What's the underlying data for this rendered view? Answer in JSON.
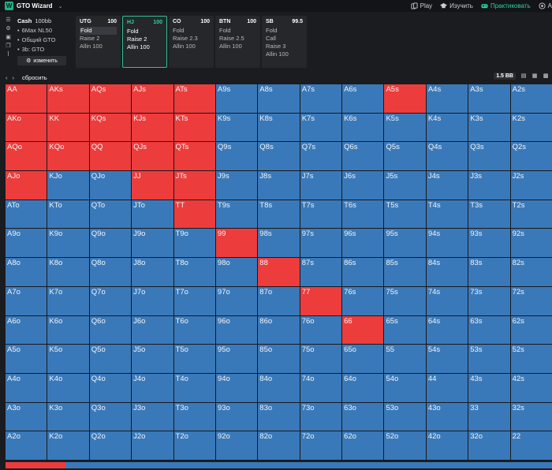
{
  "app": {
    "logo_letter": "W",
    "name": "GTO Wizard"
  },
  "nav": {
    "play": "Play",
    "study": "Изучить",
    "practice": "Практиковать",
    "extra": "A"
  },
  "config": {
    "title": "Cash",
    "stake": "100bb",
    "lines": [
      "6Max NL50",
      "Общий GTO",
      "3b: GTO"
    ],
    "change_label": "изменить"
  },
  "positions": [
    {
      "name": "UTG",
      "stack": "100",
      "actions": [
        "Fold",
        "Raise 2",
        "Allin 100"
      ],
      "selected": 0,
      "active": false
    },
    {
      "name": "HJ",
      "stack": "100",
      "actions": [
        "Fold",
        "Raise 2",
        "Allin 100"
      ],
      "selected": -1,
      "active": true
    },
    {
      "name": "CO",
      "stack": "100",
      "actions": [
        "Fold",
        "Raise 2.3",
        "Allin 100"
      ],
      "selected": -1,
      "active": false
    },
    {
      "name": "BTN",
      "stack": "100",
      "actions": [
        "Fold",
        "Raise 2.5",
        "Allin 100"
      ],
      "selected": -1,
      "active": false
    },
    {
      "name": "SB",
      "stack": "99.5",
      "actions": [
        "Fold",
        "Call",
        "Raise 3",
        "Allin 100"
      ],
      "selected": -1,
      "active": false
    }
  ],
  "subbar": {
    "reset": "сбросить",
    "bb": "1.5 BB"
  },
  "colors": {
    "raise": "#ed3c3c",
    "fold": "#3a79b9",
    "accent": "#2fd19f"
  },
  "grid": {
    "hands": [
      [
        "AA",
        "AKs",
        "AQs",
        "AJs",
        "ATs",
        "A9s",
        "A8s",
        "A7s",
        "A6s",
        "A5s",
        "A4s",
        "A3s",
        "A2s"
      ],
      [
        "AKo",
        "KK",
        "KQs",
        "KJs",
        "KTs",
        "K9s",
        "K8s",
        "K7s",
        "K6s",
        "K5s",
        "K4s",
        "K3s",
        "K2s"
      ],
      [
        "AQo",
        "KQo",
        "QQ",
        "QJs",
        "QTs",
        "Q9s",
        "Q8s",
        "Q7s",
        "Q6s",
        "Q5s",
        "Q4s",
        "Q3s",
        "Q2s"
      ],
      [
        "AJo",
        "KJo",
        "QJo",
        "JJ",
        "JTs",
        "J9s",
        "J8s",
        "J7s",
        "J6s",
        "J5s",
        "J4s",
        "J3s",
        "J2s"
      ],
      [
        "ATo",
        "KTo",
        "QTo",
        "JTo",
        "TT",
        "T9s",
        "T8s",
        "T7s",
        "T6s",
        "T5s",
        "T4s",
        "T3s",
        "T2s"
      ],
      [
        "A9o",
        "K9o",
        "Q9o",
        "J9o",
        "T9o",
        "99",
        "98s",
        "97s",
        "96s",
        "95s",
        "94s",
        "93s",
        "92s"
      ],
      [
        "A8o",
        "K8o",
        "Q8o",
        "J8o",
        "T8o",
        "98o",
        "88",
        "87s",
        "86s",
        "85s",
        "84s",
        "83s",
        "82s"
      ],
      [
        "A7o",
        "K7o",
        "Q7o",
        "J7o",
        "T7o",
        "97o",
        "87o",
        "77",
        "76s",
        "75s",
        "74s",
        "73s",
        "72s"
      ],
      [
        "A6o",
        "K6o",
        "Q6o",
        "J6o",
        "T6o",
        "96o",
        "86o",
        "76o",
        "66",
        "65s",
        "64s",
        "63s",
        "62s"
      ],
      [
        "A5o",
        "K5o",
        "Q5o",
        "J5o",
        "T5o",
        "95o",
        "85o",
        "75o",
        "65o",
        "55",
        "54s",
        "53s",
        "52s"
      ],
      [
        "A4o",
        "K4o",
        "Q4o",
        "J4o",
        "T4o",
        "94o",
        "84o",
        "74o",
        "64o",
        "54o",
        "44",
        "43s",
        "42s"
      ],
      [
        "A3o",
        "K3o",
        "Q3o",
        "J3o",
        "T3o",
        "93o",
        "83o",
        "73o",
        "63o",
        "53o",
        "43o",
        "33",
        "32s"
      ],
      [
        "A2o",
        "K2o",
        "Q2o",
        "J2o",
        "T2o",
        "92o",
        "82o",
        "72o",
        "62o",
        "52o",
        "42o",
        "32o",
        "22"
      ]
    ],
    "raise_hands": [
      "AA",
      "AKs",
      "AQs",
      "AJs",
      "ATs",
      "A5s",
      "AKo",
      "KK",
      "KQs",
      "KJs",
      "KTs",
      "AQo",
      "KQo",
      "QQ",
      "QJs",
      "QTs",
      "AJo",
      "JJ",
      "JTs",
      "TT",
      "99",
      "88",
      "77",
      "66"
    ]
  },
  "summary_bar": {
    "raise_fraction": 0.11
  }
}
